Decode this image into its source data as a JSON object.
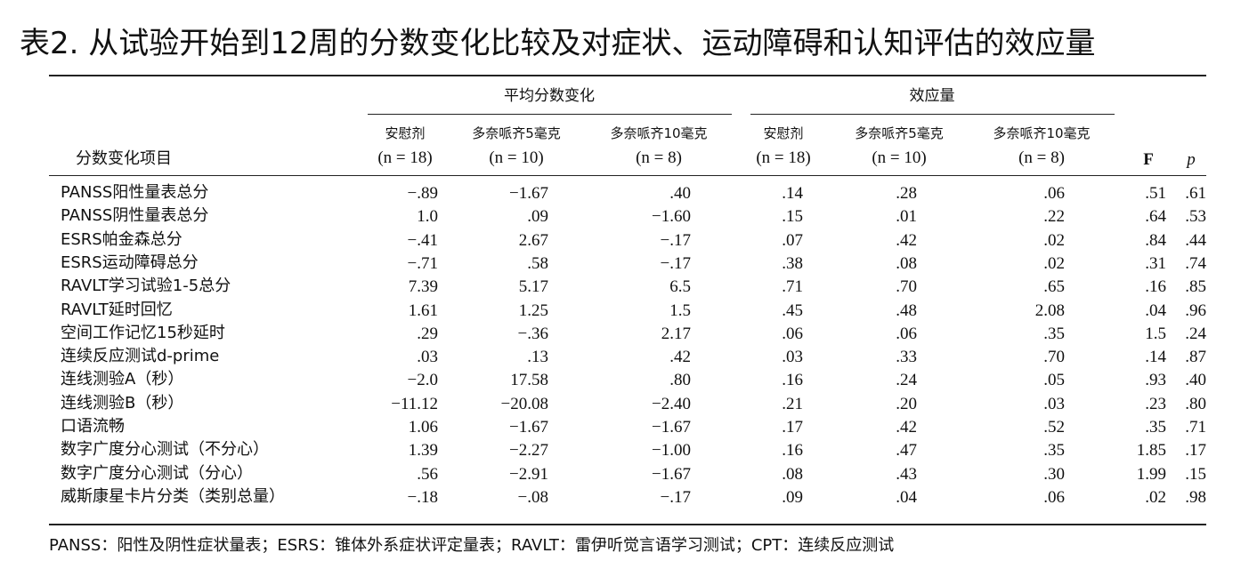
{
  "title": "表2. 从试验开始到12周的分数变化比较及对症状、运动障碍和认知评估的效应量",
  "table": {
    "groups": [
      "平均分数变化",
      "效应量"
    ],
    "header": [
      [
        "分数变化项目"
      ],
      [
        "安慰剂",
        "(n = 18)"
      ],
      [
        "多奈哌齐5毫克",
        "(n = 10)"
      ],
      [
        "多奈哌齐10毫克",
        "(n = 8)"
      ],
      [
        "安慰剂",
        "(n = 18)"
      ],
      [
        "多奈哌齐5毫克",
        "(n = 10)"
      ],
      [
        "多奈哌齐10毫克",
        "(n = 8)"
      ],
      [
        "F"
      ],
      [
        "p"
      ]
    ],
    "rows": [
      [
        "PANSS阳性量表总分",
        "−.89",
        "−1.67",
        ".40",
        ".14",
        ".28",
        ".06",
        ".51",
        ".61"
      ],
      [
        "PANSS阴性量表总分",
        "1.0",
        ".09",
        "−1.60",
        ".15",
        ".01",
        ".22",
        ".64",
        ".53"
      ],
      [
        "ESRS帕金森总分",
        "−.41",
        "2.67",
        "−.17",
        ".07",
        ".42",
        ".02",
        ".84",
        ".44"
      ],
      [
        "ESRS运动障碍总分",
        "−.71",
        ".58",
        "−.17",
        ".38",
        ".08",
        ".02",
        ".31",
        ".74"
      ],
      [
        "RAVLT学习试验1-5总分",
        "7.39",
        "5.17",
        "6.5",
        ".71",
        ".70",
        ".65",
        ".16",
        ".85"
      ],
      [
        "RAVLT延时回忆",
        "1.61",
        "1.25",
        "1.5",
        ".45",
        ".48",
        "2.08",
        ".04",
        ".96"
      ],
      [
        "空间工作记忆15秒延时",
        ".29",
        "−.36",
        "2.17",
        ".06",
        ".06",
        ".35",
        "1.5",
        ".24"
      ],
      [
        "连续反应测试d-prime",
        ".03",
        ".13",
        ".42",
        ".03",
        ".33",
        ".70",
        ".14",
        ".87"
      ],
      [
        "连线测验A（秒）",
        "−2.0",
        "17.58",
        ".80",
        ".16",
        ".24",
        ".05",
        ".93",
        ".40"
      ],
      [
        "连线测验B（秒）",
        "−11.12",
        "−20.08",
        "−2.40",
        ".21",
        ".20",
        ".03",
        ".23",
        ".80"
      ],
      [
        "口语流畅",
        "1.06",
        "−1.67",
        "−1.67",
        ".17",
        ".42",
        ".52",
        ".35",
        ".71"
      ],
      [
        "数字广度分心测试（不分心）",
        "1.39",
        "−2.27",
        "−1.00",
        ".16",
        ".47",
        ".35",
        "1.85",
        ".17"
      ],
      [
        "数字广度分心测试（分心）",
        ".56",
        "−2.91",
        "−1.67",
        ".08",
        ".43",
        ".30",
        "1.99",
        ".15"
      ],
      [
        "威斯康星卡片分类（类别总量）",
        "−.18",
        "−.08",
        "−.17",
        ".09",
        ".04",
        ".06",
        ".02",
        ".98"
      ]
    ]
  },
  "footnote": "PANSS：阳性及阴性症状量表；ESRS：锥体外系症状评定量表；RAVLT：雷伊听觉言语学习测试；CPT：连续反应测试"
}
